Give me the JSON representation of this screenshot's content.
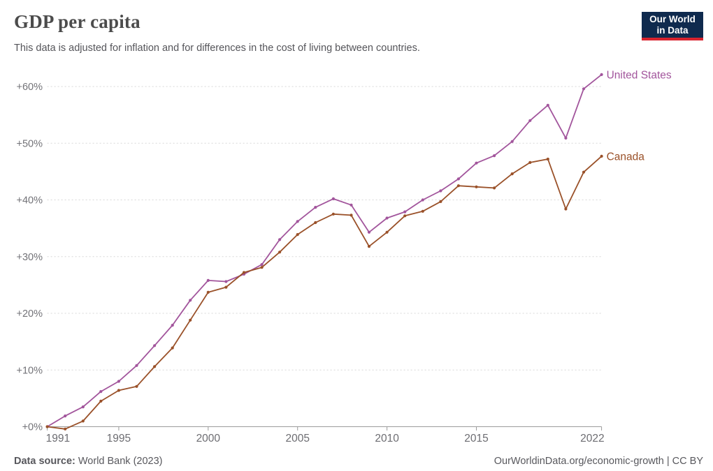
{
  "header": {
    "title": "GDP per capita",
    "subtitle": "This data is adjusted for inflation and for differences in the cost of living between countries.",
    "logo_line1": "Our World",
    "logo_line2": "in Data",
    "logo_colors": {
      "background": "#0f2a4e",
      "underline": "#d8232e"
    }
  },
  "chart_data": {
    "type": "line",
    "title": "GDP per capita",
    "x": [
      1991,
      1992,
      1993,
      1994,
      1995,
      1996,
      1997,
      1998,
      1999,
      2000,
      2001,
      2002,
      2003,
      2004,
      2005,
      2006,
      2007,
      2008,
      2009,
      2010,
      2011,
      2012,
      2013,
      2014,
      2015,
      2016,
      2017,
      2018,
      2019,
      2020,
      2021,
      2022
    ],
    "series": [
      {
        "name": "United States",
        "color": "#a2559c",
        "values": [
          0,
          1.9,
          3.5,
          6.2,
          8.0,
          10.8,
          14.3,
          17.9,
          22.3,
          25.8,
          25.6,
          26.9,
          28.6,
          33.0,
          36.2,
          38.7,
          40.2,
          39.1,
          34.3,
          36.8,
          37.9,
          40.0,
          41.6,
          43.7,
          46.5,
          47.8,
          50.3,
          54.0,
          56.7,
          50.9,
          59.6,
          62.1
        ]
      },
      {
        "name": "Canada",
        "color": "#9a5129",
        "values": [
          0,
          -0.4,
          1.0,
          4.5,
          6.4,
          7.1,
          10.6,
          13.9,
          18.8,
          23.7,
          24.6,
          27.2,
          28.1,
          30.8,
          33.9,
          36.0,
          37.5,
          37.3,
          31.8,
          34.3,
          37.2,
          38.0,
          39.7,
          42.5,
          42.3,
          42.1,
          44.6,
          46.6,
          47.2,
          38.4,
          44.9,
          47.7
        ]
      }
    ],
    "yticks": [
      {
        "value": 0,
        "label": "+0%"
      },
      {
        "value": 10,
        "label": "+10%"
      },
      {
        "value": 20,
        "label": "+20%"
      },
      {
        "value": 30,
        "label": "+30%"
      },
      {
        "value": 40,
        "label": "+40%"
      },
      {
        "value": 50,
        "label": "+50%"
      },
      {
        "value": 60,
        "label": "+60%"
      }
    ],
    "xticks": [
      1991,
      1995,
      2000,
      2005,
      2010,
      2015,
      2022
    ],
    "ylim": [
      0,
      62.1
    ],
    "grid": "horizontal-dashed",
    "legend_position": "end-of-line-labels",
    "colors": {
      "gridline": "#d7d7d7",
      "axis": "#9b9b9b",
      "axis_label": "#6d6d72",
      "ytick_label": "#737378"
    }
  },
  "footer": {
    "source_bold": "Data source:",
    "source_rest": " World Bank (2023)",
    "note": "OurWorldinData.org/economic-growth | CC BY"
  }
}
